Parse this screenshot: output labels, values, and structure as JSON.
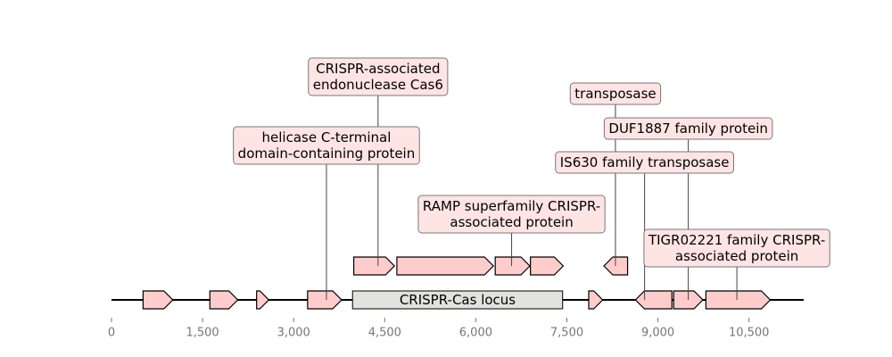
{
  "chart_data": {
    "type": "gene-map",
    "x_range": [
      0,
      11400
    ],
    "x_ticks": [
      {
        "value": 0,
        "label": "0"
      },
      {
        "value": 1500,
        "label": "1,500"
      },
      {
        "value": 3000,
        "label": "3,000"
      },
      {
        "value": 4500,
        "label": "4,500"
      },
      {
        "value": 6000,
        "label": "6,000"
      },
      {
        "value": 7500,
        "label": "7,500"
      },
      {
        "value": 9000,
        "label": "9,000"
      },
      {
        "value": 10500,
        "label": "10,500"
      }
    ],
    "sequence": {
      "start": 0,
      "end": 11400
    },
    "colors": {
      "gene_fill": "#ffcccc",
      "gene_stroke": "#000000",
      "locus_fill": "#e1e3dc",
      "label_fill": "#ffe4e4",
      "label_stroke": "#777777",
      "tick_color": "#777777"
    },
    "locus": {
      "start": 3970,
      "end": 7430,
      "label": "CRISPR-Cas locus"
    },
    "genes": [
      {
        "start": 520,
        "end": 1010,
        "strand": 1,
        "track": 0
      },
      {
        "start": 1620,
        "end": 2080,
        "strand": 1,
        "track": 0
      },
      {
        "start": 2390,
        "end": 2590,
        "strand": 1,
        "track": 0
      },
      {
        "start": 3230,
        "end": 3790,
        "strand": 1,
        "track": 0
      },
      {
        "start": 7860,
        "end": 8090,
        "strand": 1,
        "track": 0
      },
      {
        "start": 8630,
        "end": 9230,
        "strand": -1,
        "track": 0
      },
      {
        "start": 9260,
        "end": 9740,
        "strand": 1,
        "track": 0
      },
      {
        "start": 9790,
        "end": 10850,
        "strand": 1,
        "track": 0
      },
      {
        "start": 3990,
        "end": 4660,
        "strand": 1,
        "track": 1
      },
      {
        "start": 4700,
        "end": 6290,
        "strand": 1,
        "track": 1
      },
      {
        "start": 6320,
        "end": 6890,
        "strand": 1,
        "track": 1
      },
      {
        "start": 6900,
        "end": 7440,
        "strand": 1,
        "track": 1
      },
      {
        "start": 8110,
        "end": 8500,
        "strand": -1,
        "track": 1
      }
    ],
    "annotations": [
      {
        "lines": [
          "CRISPR-associated",
          "endonuclease Cas6"
        ],
        "x": 4390,
        "label_level": 8,
        "anchor_track": 1
      },
      {
        "lines": [
          "helicase C-terminal",
          "domain-containing protein"
        ],
        "x": 3540,
        "label_level": 6,
        "anchor_track": 0
      },
      {
        "lines": [
          "RAMP superfamily CRISPR-",
          "associated protein"
        ],
        "x": 6590,
        "label_level": 3,
        "anchor_track": 1
      },
      {
        "lines": [
          "transposase"
        ],
        "x": 8300,
        "label_level": 8,
        "anchor_track": 1
      },
      {
        "lines": [
          "DUF1887 family protein"
        ],
        "x": 9500,
        "label_level": 7,
        "anchor_track": 0
      },
      {
        "lines": [
          "IS630 family transposase"
        ],
        "x": 8780,
        "label_level": 6,
        "anchor_track": 0
      },
      {
        "lines": [
          "TIGR02221 family CRISPR-",
          "associated protein"
        ],
        "x": 10300,
        "label_level": 2,
        "anchor_track": 0
      }
    ]
  }
}
